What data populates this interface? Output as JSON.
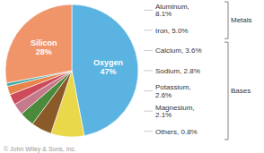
{
  "chart_data": {
    "type": "pie",
    "categories": [
      "Oxygen",
      "Aluminum",
      "Iron",
      "Calcium",
      "Sodium",
      "Potassium",
      "Magnesium",
      "Others",
      "Silicon"
    ],
    "values": [
      47,
      8.1,
      5.0,
      3.6,
      2.8,
      2.6,
      2.1,
      0.8,
      28
    ],
    "value_labels": [
      "Oxygen\n47%",
      "Aluminum,\n8.1%",
      "Iron, 5.0%",
      "Calcium, 3.6%",
      "Sodium, 2.8%",
      "Potassium,\n2.6%",
      "Magnesium,\n2.1%",
      "Others, 0.8%",
      "Silicon\n28%"
    ],
    "colors": [
      "#5ab3e0",
      "#e8d84a",
      "#8a5a28",
      "#4a8a3a",
      "#c47a8a",
      "#cc4a5a",
      "#e8834a",
      "#3aacaa",
      "#f0956a"
    ],
    "annotations": [
      {
        "text": "Metals",
        "categories": [
          "Aluminum",
          "Iron"
        ]
      },
      {
        "text": "Bases",
        "categories": [
          "Calcium",
          "Sodium",
          "Potassium",
          "Magnesium",
          "Others"
        ]
      },
      {
        "text": "© John Wiley & Sons, Inc."
      }
    ]
  }
}
